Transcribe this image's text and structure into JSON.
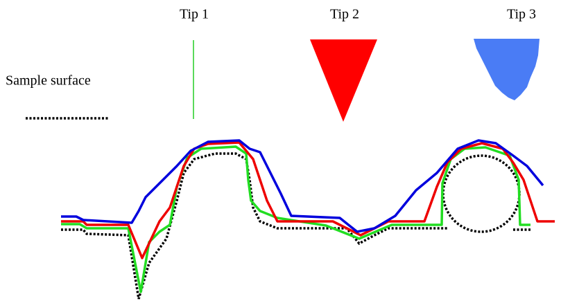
{
  "labels": {
    "tip1": "Tip 1",
    "tip2": "Tip 2",
    "tip3": "Tip 3",
    "sample_surface": "Sample surface"
  }
}
